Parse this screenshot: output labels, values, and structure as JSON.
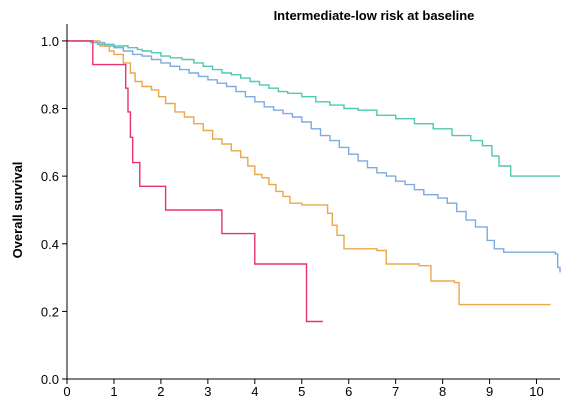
{
  "chart_data": {
    "type": "line",
    "title": "Intermediate-low risk at baseline",
    "xlabel": "",
    "ylabel": "Overall survival",
    "xlim": [
      0,
      10.5
    ],
    "ylim": [
      0,
      1.05
    ],
    "xticks": [
      "0",
      "1",
      "2",
      "3",
      "4",
      "5",
      "6",
      "7",
      "8",
      "9",
      "10"
    ],
    "yticks": [
      "0.0",
      "0.2",
      "0.4",
      "0.6",
      "0.8",
      "1.0"
    ],
    "grid": false,
    "step": true,
    "series": [
      {
        "color": "#4fc9b0",
        "points": [
          [
            0,
            1.0
          ],
          [
            0.5,
            1.0
          ],
          [
            0.65,
            0.99
          ],
          [
            1.0,
            0.985
          ],
          [
            1.3,
            0.98
          ],
          [
            1.5,
            0.975
          ],
          [
            1.6,
            0.97
          ],
          [
            1.8,
            0.965
          ],
          [
            2.0,
            0.955
          ],
          [
            2.2,
            0.95
          ],
          [
            2.45,
            0.945
          ],
          [
            2.7,
            0.935
          ],
          [
            2.9,
            0.925
          ],
          [
            3.1,
            0.915
          ],
          [
            3.3,
            0.905
          ],
          [
            3.5,
            0.9
          ],
          [
            3.7,
            0.89
          ],
          [
            3.9,
            0.88
          ],
          [
            4.1,
            0.87
          ],
          [
            4.3,
            0.86
          ],
          [
            4.5,
            0.85
          ],
          [
            4.7,
            0.845
          ],
          [
            5.0,
            0.835
          ],
          [
            5.3,
            0.82
          ],
          [
            5.6,
            0.81
          ],
          [
            5.9,
            0.8
          ],
          [
            6.2,
            0.795
          ],
          [
            6.6,
            0.78
          ],
          [
            7.0,
            0.77
          ],
          [
            7.4,
            0.755
          ],
          [
            7.8,
            0.74
          ],
          [
            8.2,
            0.72
          ],
          [
            8.6,
            0.705
          ],
          [
            8.85,
            0.69
          ],
          [
            9.05,
            0.66
          ],
          [
            9.2,
            0.63
          ],
          [
            9.45,
            0.6
          ],
          [
            10.5,
            0.6
          ]
        ]
      },
      {
        "color": "#7ea9e1",
        "points": [
          [
            0,
            1.0
          ],
          [
            0.5,
            0.995
          ],
          [
            0.8,
            0.985
          ],
          [
            1.0,
            0.98
          ],
          [
            1.2,
            0.97
          ],
          [
            1.4,
            0.96
          ],
          [
            1.6,
            0.955
          ],
          [
            1.8,
            0.945
          ],
          [
            2.0,
            0.935
          ],
          [
            2.2,
            0.925
          ],
          [
            2.4,
            0.915
          ],
          [
            2.6,
            0.905
          ],
          [
            2.8,
            0.895
          ],
          [
            3.0,
            0.885
          ],
          [
            3.2,
            0.875
          ],
          [
            3.4,
            0.865
          ],
          [
            3.6,
            0.85
          ],
          [
            3.8,
            0.835
          ],
          [
            4.0,
            0.82
          ],
          [
            4.2,
            0.805
          ],
          [
            4.4,
            0.795
          ],
          [
            4.6,
            0.785
          ],
          [
            4.8,
            0.775
          ],
          [
            5.0,
            0.76
          ],
          [
            5.2,
            0.74
          ],
          [
            5.4,
            0.72
          ],
          [
            5.6,
            0.705
          ],
          [
            5.8,
            0.685
          ],
          [
            6.0,
            0.665
          ],
          [
            6.2,
            0.645
          ],
          [
            6.4,
            0.625
          ],
          [
            6.6,
            0.61
          ],
          [
            6.8,
            0.6
          ],
          [
            7.0,
            0.585
          ],
          [
            7.2,
            0.575
          ],
          [
            7.4,
            0.56
          ],
          [
            7.6,
            0.545
          ],
          [
            7.9,
            0.535
          ],
          [
            8.1,
            0.52
          ],
          [
            8.3,
            0.495
          ],
          [
            8.5,
            0.47
          ],
          [
            8.7,
            0.45
          ],
          [
            8.95,
            0.41
          ],
          [
            9.1,
            0.385
          ],
          [
            9.3,
            0.375
          ],
          [
            10.4,
            0.37
          ],
          [
            10.45,
            0.33
          ],
          [
            10.5,
            0.315
          ]
        ]
      },
      {
        "color": "#eaa84a",
        "points": [
          [
            0,
            1.0
          ],
          [
            0.5,
            1.0
          ],
          [
            0.7,
            0.985
          ],
          [
            0.9,
            0.97
          ],
          [
            1.0,
            0.96
          ],
          [
            1.2,
            0.935
          ],
          [
            1.35,
            0.905
          ],
          [
            1.45,
            0.88
          ],
          [
            1.6,
            0.865
          ],
          [
            1.8,
            0.855
          ],
          [
            1.95,
            0.835
          ],
          [
            2.1,
            0.815
          ],
          [
            2.3,
            0.79
          ],
          [
            2.5,
            0.775
          ],
          [
            2.7,
            0.755
          ],
          [
            2.9,
            0.735
          ],
          [
            3.1,
            0.71
          ],
          [
            3.3,
            0.695
          ],
          [
            3.5,
            0.675
          ],
          [
            3.7,
            0.655
          ],
          [
            3.85,
            0.63
          ],
          [
            4.0,
            0.605
          ],
          [
            4.15,
            0.595
          ],
          [
            4.3,
            0.575
          ],
          [
            4.45,
            0.555
          ],
          [
            4.6,
            0.54
          ],
          [
            4.75,
            0.52
          ],
          [
            5.0,
            0.515
          ],
          [
            5.55,
            0.49
          ],
          [
            5.65,
            0.455
          ],
          [
            5.75,
            0.425
          ],
          [
            5.9,
            0.385
          ],
          [
            6.6,
            0.38
          ],
          [
            6.8,
            0.34
          ],
          [
            7.5,
            0.335
          ],
          [
            7.75,
            0.29
          ],
          [
            8.25,
            0.285
          ],
          [
            8.35,
            0.22
          ],
          [
            10.3,
            0.22
          ]
        ]
      },
      {
        "color": "#e8336b",
        "points": [
          [
            0,
            1.0
          ],
          [
            0.5,
            1.0
          ],
          [
            0.55,
            0.93
          ],
          [
            1.2,
            0.93
          ],
          [
            1.25,
            0.86
          ],
          [
            1.3,
            0.79
          ],
          [
            1.35,
            0.715
          ],
          [
            1.4,
            0.64
          ],
          [
            1.55,
            0.57
          ],
          [
            2.1,
            0.5
          ],
          [
            3.3,
            0.43
          ],
          [
            4.0,
            0.34
          ],
          [
            5.1,
            0.17
          ],
          [
            5.45,
            0.17
          ]
        ]
      }
    ]
  }
}
